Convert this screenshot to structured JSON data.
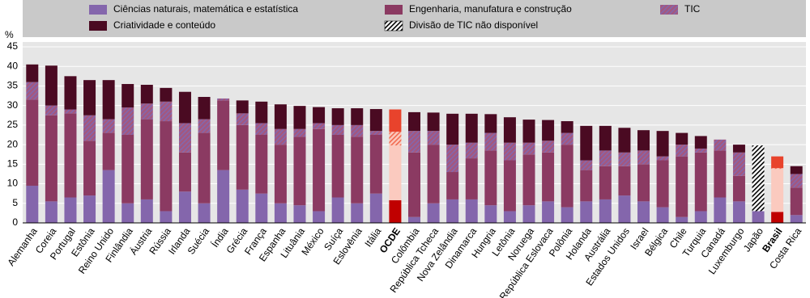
{
  "chart_data": {
    "type": "stacked-bar",
    "ylabel": "%",
    "categories": [
      "Alemanha",
      "Coreia",
      "Portugal",
      "Estônia",
      "Reino Unido",
      "Finlândia",
      "Áustria",
      "Rússia",
      "Irlanda",
      "Suécia",
      "Índia",
      "Grécia",
      "França",
      "Espanha",
      "Lituânia",
      "México",
      "Suíça",
      "Eslovênia",
      "Itália",
      "OCDE",
      "Colômbia",
      "República Tcheca",
      "Nova Zelândia",
      "Dinamarca",
      "Hungria",
      "Letônia",
      "Noruega",
      "República Eslovaca",
      "Polônia",
      "Holanda",
      "Austrália",
      "Estados Unidos",
      "Israel",
      "Bélgica",
      "Chile",
      "Turquia",
      "Canadá",
      "Luxemburgo",
      "Japão",
      "Brasil",
      "Costa Rica"
    ],
    "highlight": [
      19,
      39
    ],
    "series": [
      {
        "name": "Ciências naturais, matemática e estatística",
        "color": "#8466ac",
        "highlight_color": "#c00000",
        "values": [
          9.5,
          5.5,
          6.5,
          7,
          13.5,
          5,
          6,
          3,
          8,
          5,
          13.5,
          8.5,
          7.5,
          5,
          4.5,
          3,
          6.5,
          5,
          7.5,
          5.8,
          1.5,
          5,
          6,
          6,
          4.5,
          3,
          4.5,
          5.5,
          4,
          5.5,
          6,
          7,
          5.5,
          4,
          1.5,
          3,
          6.5,
          5.5,
          3,
          2.8,
          2
        ]
      },
      {
        "name": "Engenharia, manufatura e construção",
        "color": "#8b3a62",
        "highlight_color": "#fbcabf",
        "values": [
          22,
          22,
          21.5,
          14,
          9.5,
          17.5,
          20.5,
          23,
          10,
          18,
          17.8,
          16.5,
          15,
          15,
          17.5,
          21,
          16,
          17,
          15,
          14,
          16.5,
          15,
          7,
          10.5,
          14,
          13,
          13,
          12.5,
          16,
          8,
          8.5,
          7.5,
          9.5,
          12,
          15.5,
          15,
          12,
          6.5,
          null,
          11,
          7
        ]
      },
      {
        "name": "TIC",
        "color": "#8466ac",
        "hatch": true,
        "highlight_color": "#f26a4f",
        "values": [
          4.5,
          2.5,
          1,
          6.5,
          3.5,
          7,
          4,
          5,
          7.5,
          3.5,
          0.5,
          3,
          3,
          4,
          2,
          1.5,
          2.5,
          3,
          1,
          3.5,
          5.5,
          3.5,
          7,
          4,
          4.5,
          4.5,
          3,
          3,
          3,
          2.5,
          4,
          3.5,
          3.5,
          1,
          3,
          1,
          2.8,
          6,
          null,
          0.2,
          3.5
        ]
      },
      {
        "name": "Criatividade e conteúdo",
        "color": "#4a0a22",
        "highlight_color": "#e8432c",
        "values": [
          4.5,
          10.2,
          8.5,
          9,
          10,
          6,
          4.8,
          3.5,
          8,
          5.7,
          0,
          3.3,
          5.5,
          6.3,
          5.9,
          4.1,
          4.3,
          4.3,
          5.6,
          5.7,
          4.8,
          4.7,
          7.9,
          7.4,
          4.8,
          6.5,
          5.9,
          5.3,
          3,
          8.8,
          6.3,
          6.3,
          5.2,
          6.5,
          3,
          3.2,
          0,
          2,
          null,
          3,
          2
        ]
      },
      {
        "name": "Divisão de TIC não disponível",
        "color": "#ffffff",
        "hatch_color": "#000000",
        "values": [
          null,
          null,
          null,
          null,
          null,
          null,
          null,
          null,
          null,
          null,
          null,
          null,
          null,
          null,
          null,
          null,
          null,
          null,
          null,
          null,
          null,
          null,
          null,
          null,
          null,
          null,
          null,
          null,
          null,
          null,
          null,
          null,
          null,
          null,
          null,
          null,
          null,
          null,
          16.8,
          null,
          null
        ]
      }
    ],
    "ylim": [
      0,
      45
    ],
    "yticks": [
      0,
      5,
      10,
      15,
      20,
      25,
      30,
      35,
      40,
      45
    ],
    "grid": true
  }
}
